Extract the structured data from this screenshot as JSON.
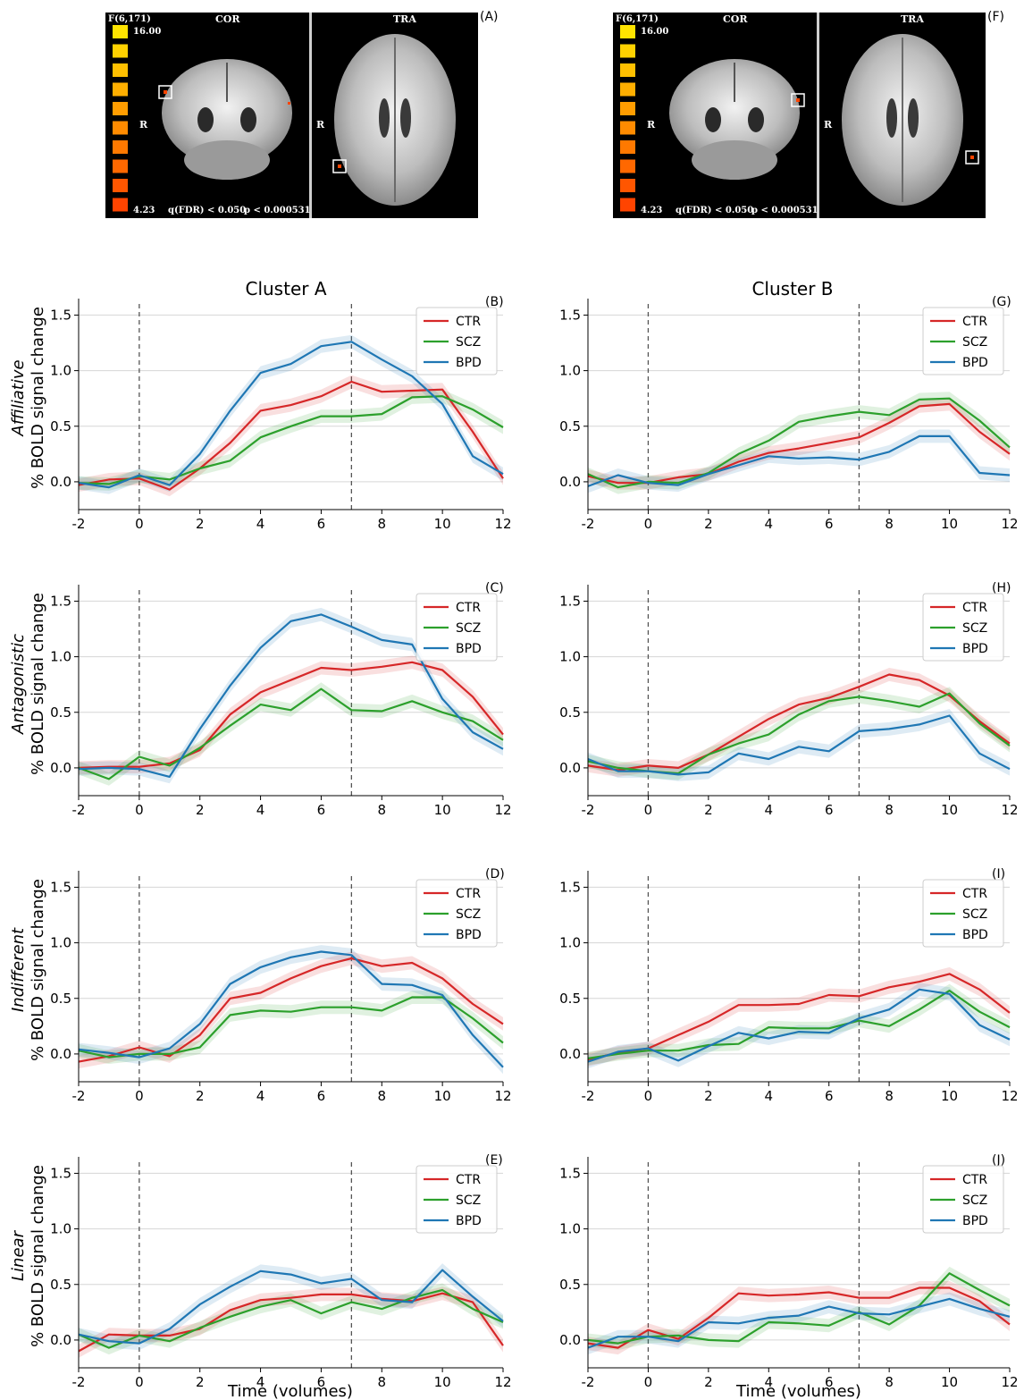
{
  "brain_panels": [
    {
      "letter": "(A)",
      "stat_label": "F(6,171)",
      "scale_max": "16.00",
      "scale_min": "4.23",
      "qfdr": "q(FDR) < 0.050",
      "pval": "p < 0.000531",
      "view1": "COR",
      "view2": "TRA",
      "side_label": "R"
    },
    {
      "letter": "(F)",
      "stat_label": "F(6,171)",
      "scale_max": "16.00",
      "scale_min": "4.23",
      "qfdr": "q(FDR) < 0.050",
      "pval": "p < 0.000531",
      "view1": "COR",
      "view2": "TRA",
      "side_label": "R"
    }
  ],
  "colors": {
    "CTR": "#d62728",
    "SCZ": "#2ca02c",
    "BPD": "#1f77b4"
  },
  "legend": [
    "CTR",
    "SCZ",
    "BPD"
  ],
  "cluster_titles": [
    "Cluster A",
    "Cluster B"
  ],
  "row_labels": [
    "Affiliative",
    "Antagonistic",
    "Indifferent",
    "Linear"
  ],
  "ylabel": "% BOLD signal change",
  "xlabel": "Time (volumes)",
  "chart_data": [
    {
      "type": "line",
      "panel": "(B)",
      "x": [
        -2,
        -1,
        0,
        1,
        2,
        3,
        4,
        5,
        6,
        7,
        8,
        9,
        10,
        11,
        12
      ],
      "xlim": [
        -2,
        12
      ],
      "ylim": [
        -0.25,
        1.6
      ],
      "yticks": [
        0.0,
        0.5,
        1.0,
        1.5
      ],
      "xticks": [
        -2,
        0,
        2,
        4,
        6,
        8,
        10,
        12
      ],
      "vlines": [
        0,
        7
      ],
      "grid": "horizontal",
      "legend_position": "top-right",
      "series": [
        {
          "name": "CTR",
          "values": [
            -0.03,
            0.02,
            0.03,
            -0.07,
            0.12,
            0.35,
            0.64,
            0.69,
            0.77,
            0.9,
            0.81,
            0.82,
            0.83,
            0.45,
            0.03
          ]
        },
        {
          "name": "SCZ",
          "values": [
            -0.01,
            -0.02,
            0.05,
            0.02,
            0.12,
            0.19,
            0.4,
            0.5,
            0.59,
            0.59,
            0.61,
            0.76,
            0.77,
            0.65,
            0.49
          ]
        },
        {
          "name": "BPD",
          "values": [
            -0.01,
            -0.05,
            0.06,
            -0.03,
            0.25,
            0.64,
            0.98,
            1.06,
            1.22,
            1.26,
            1.1,
            0.95,
            0.7,
            0.23,
            0.07
          ]
        }
      ]
    },
    {
      "type": "line",
      "panel": "(G)",
      "x": [
        -2,
        -1,
        0,
        1,
        2,
        3,
        4,
        5,
        6,
        7,
        8,
        9,
        10,
        11,
        12
      ],
      "xlim": [
        -2,
        12
      ],
      "ylim": [
        -0.25,
        1.6
      ],
      "yticks": [
        0.0,
        0.5,
        1.0,
        1.5
      ],
      "xticks": [
        -2,
        0,
        2,
        4,
        6,
        8,
        10,
        12
      ],
      "vlines": [
        0,
        7
      ],
      "grid": "horizontal",
      "legend_position": "top-right",
      "series": [
        {
          "name": "CTR",
          "values": [
            0.05,
            -0.01,
            -0.01,
            0.04,
            0.07,
            0.18,
            0.26,
            0.3,
            0.35,
            0.4,
            0.53,
            0.68,
            0.7,
            0.45,
            0.25
          ]
        },
        {
          "name": "SCZ",
          "values": [
            0.07,
            -0.05,
            0.0,
            -0.01,
            0.08,
            0.25,
            0.37,
            0.54,
            0.59,
            0.63,
            0.6,
            0.74,
            0.75,
            0.55,
            0.31
          ]
        },
        {
          "name": "BPD",
          "values": [
            -0.04,
            0.06,
            -0.01,
            -0.03,
            0.07,
            0.15,
            0.23,
            0.21,
            0.22,
            0.2,
            0.27,
            0.41,
            0.41,
            0.08,
            0.06
          ]
        }
      ]
    },
    {
      "type": "line",
      "panel": "(C)",
      "x": [
        -2,
        -1,
        0,
        1,
        2,
        3,
        4,
        5,
        6,
        7,
        8,
        9,
        10,
        11,
        12
      ],
      "xlim": [
        -2,
        12
      ],
      "ylim": [
        -0.25,
        1.6
      ],
      "yticks": [
        0.0,
        0.5,
        1.0,
        1.5
      ],
      "xticks": [
        -2,
        0,
        2,
        4,
        6,
        8,
        10,
        12
      ],
      "vlines": [
        0,
        7
      ],
      "grid": "horizontal",
      "legend_position": "top-right",
      "series": [
        {
          "name": "CTR",
          "values": [
            0.0,
            0.01,
            0.01,
            0.04,
            0.16,
            0.48,
            0.68,
            0.79,
            0.9,
            0.88,
            0.91,
            0.95,
            0.88,
            0.64,
            0.3
          ]
        },
        {
          "name": "SCZ",
          "values": [
            0.0,
            -0.1,
            0.1,
            0.02,
            0.18,
            0.38,
            0.57,
            0.52,
            0.71,
            0.52,
            0.51,
            0.6,
            0.5,
            0.42,
            0.25
          ]
        },
        {
          "name": "BPD",
          "values": [
            -0.01,
            0.0,
            -0.01,
            -0.08,
            0.35,
            0.74,
            1.08,
            1.32,
            1.38,
            1.27,
            1.15,
            1.11,
            0.62,
            0.32,
            0.17
          ]
        }
      ]
    },
    {
      "type": "line",
      "panel": "(H)",
      "x": [
        -2,
        -1,
        0,
        1,
        2,
        3,
        4,
        5,
        6,
        7,
        8,
        9,
        10,
        11,
        12
      ],
      "xlim": [
        -2,
        12
      ],
      "ylim": [
        -0.25,
        1.6
      ],
      "yticks": [
        0.0,
        0.5,
        1.0,
        1.5
      ],
      "xticks": [
        -2,
        0,
        2,
        4,
        6,
        8,
        10,
        12
      ],
      "vlines": [
        0,
        7
      ],
      "grid": "horizontal",
      "legend_position": "top-right",
      "series": [
        {
          "name": "CTR",
          "values": [
            0.02,
            -0.02,
            0.02,
            0.0,
            0.12,
            0.28,
            0.44,
            0.57,
            0.63,
            0.73,
            0.84,
            0.79,
            0.65,
            0.42,
            0.22
          ]
        },
        {
          "name": "SCZ",
          "values": [
            0.06,
            0.0,
            -0.03,
            -0.05,
            0.12,
            0.22,
            0.3,
            0.48,
            0.6,
            0.64,
            0.6,
            0.55,
            0.67,
            0.4,
            0.2
          ]
        },
        {
          "name": "BPD",
          "values": [
            0.08,
            -0.03,
            -0.03,
            -0.06,
            -0.04,
            0.13,
            0.08,
            0.19,
            0.15,
            0.33,
            0.35,
            0.39,
            0.47,
            0.13,
            -0.01
          ]
        }
      ]
    },
    {
      "type": "line",
      "panel": "(D)",
      "x": [
        -2,
        -1,
        0,
        1,
        2,
        3,
        4,
        5,
        6,
        7,
        8,
        9,
        10,
        11,
        12
      ],
      "xlim": [
        -2,
        12
      ],
      "ylim": [
        -0.25,
        1.6
      ],
      "yticks": [
        0.0,
        0.5,
        1.0,
        1.5
      ],
      "xticks": [
        -2,
        0,
        2,
        4,
        6,
        8,
        10,
        12
      ],
      "vlines": [
        0,
        7
      ],
      "grid": "horizontal",
      "legend_position": "top-right",
      "series": [
        {
          "name": "CTR",
          "values": [
            -0.07,
            -0.02,
            0.06,
            -0.02,
            0.17,
            0.5,
            0.55,
            0.68,
            0.79,
            0.86,
            0.79,
            0.82,
            0.68,
            0.45,
            0.27
          ]
        },
        {
          "name": "SCZ",
          "values": [
            0.03,
            -0.03,
            0.0,
            0.0,
            0.06,
            0.35,
            0.39,
            0.38,
            0.42,
            0.42,
            0.39,
            0.51,
            0.51,
            0.32,
            0.1
          ]
        },
        {
          "name": "BPD",
          "values": [
            0.04,
            0.01,
            -0.03,
            0.05,
            0.27,
            0.63,
            0.78,
            0.87,
            0.92,
            0.89,
            0.63,
            0.62,
            0.53,
            0.17,
            -0.12
          ]
        }
      ]
    },
    {
      "type": "line",
      "panel": "(I)",
      "x": [
        -2,
        -1,
        0,
        1,
        2,
        3,
        4,
        5,
        6,
        7,
        8,
        9,
        10,
        11,
        12
      ],
      "xlim": [
        -2,
        12
      ],
      "ylim": [
        -0.25,
        1.6
      ],
      "yticks": [
        0.0,
        0.5,
        1.0,
        1.5
      ],
      "xticks": [
        -2,
        0,
        2,
        4,
        6,
        8,
        10,
        12
      ],
      "vlines": [
        0,
        7
      ],
      "grid": "horizontal",
      "legend_position": "top-right",
      "series": [
        {
          "name": "CTR",
          "values": [
            -0.05,
            0.01,
            0.05,
            0.17,
            0.29,
            0.44,
            0.44,
            0.45,
            0.53,
            0.52,
            0.6,
            0.65,
            0.72,
            0.58,
            0.37
          ]
        },
        {
          "name": "SCZ",
          "values": [
            -0.04,
            0.0,
            0.03,
            0.03,
            0.08,
            0.09,
            0.24,
            0.23,
            0.23,
            0.3,
            0.25,
            0.4,
            0.57,
            0.38,
            0.24
          ]
        },
        {
          "name": "BPD",
          "values": [
            -0.07,
            0.02,
            0.05,
            -0.06,
            0.07,
            0.19,
            0.14,
            0.2,
            0.19,
            0.32,
            0.4,
            0.58,
            0.54,
            0.26,
            0.13
          ]
        }
      ]
    },
    {
      "type": "line",
      "panel": "(E)",
      "x": [
        -2,
        -1,
        0,
        1,
        2,
        3,
        4,
        5,
        6,
        7,
        8,
        9,
        10,
        11,
        12
      ],
      "xlim": [
        -2,
        12
      ],
      "ylim": [
        -0.25,
        1.6
      ],
      "yticks": [
        0.0,
        0.5,
        1.0,
        1.5
      ],
      "xticks": [
        -2,
        0,
        2,
        4,
        6,
        8,
        10,
        12
      ],
      "vlines": [
        0,
        7
      ],
      "grid": "horizontal",
      "legend_position": "top-right",
      "series": [
        {
          "name": "CTR",
          "values": [
            -0.1,
            0.05,
            0.04,
            0.04,
            0.1,
            0.27,
            0.36,
            0.38,
            0.41,
            0.41,
            0.37,
            0.35,
            0.42,
            0.34,
            -0.05
          ]
        },
        {
          "name": "SCZ",
          "values": [
            0.05,
            -0.07,
            0.04,
            -0.01,
            0.11,
            0.21,
            0.3,
            0.36,
            0.24,
            0.34,
            0.28,
            0.38,
            0.45,
            0.28,
            0.16
          ]
        },
        {
          "name": "BPD",
          "values": [
            0.05,
            -0.01,
            -0.03,
            0.1,
            0.32,
            0.48,
            0.62,
            0.59,
            0.51,
            0.55,
            0.36,
            0.34,
            0.63,
            0.39,
            0.17
          ]
        }
      ]
    },
    {
      "type": "line",
      "panel": "(J)",
      "x": [
        -2,
        -1,
        0,
        1,
        2,
        3,
        4,
        5,
        6,
        7,
        8,
        9,
        10,
        11,
        12
      ],
      "xlim": [
        -2,
        12
      ],
      "ylim": [
        -0.25,
        1.6
      ],
      "yticks": [
        0.0,
        0.5,
        1.0,
        1.5
      ],
      "xticks": [
        -2,
        0,
        2,
        4,
        6,
        8,
        10,
        12
      ],
      "vlines": [
        0,
        7
      ],
      "grid": "horizontal",
      "legend_position": "top-right",
      "series": [
        {
          "name": "CTR",
          "values": [
            -0.03,
            -0.07,
            0.09,
            0.01,
            0.2,
            0.42,
            0.4,
            0.41,
            0.43,
            0.38,
            0.38,
            0.47,
            0.47,
            0.35,
            0.14
          ]
        },
        {
          "name": "SCZ",
          "values": [
            0.0,
            -0.03,
            0.03,
            0.04,
            0.0,
            -0.01,
            0.16,
            0.15,
            0.13,
            0.25,
            0.14,
            0.31,
            0.6,
            0.45,
            0.31
          ]
        },
        {
          "name": "BPD",
          "values": [
            -0.07,
            0.03,
            0.03,
            -0.01,
            0.16,
            0.15,
            0.2,
            0.22,
            0.3,
            0.24,
            0.23,
            0.3,
            0.37,
            0.28,
            0.21
          ]
        }
      ]
    }
  ]
}
